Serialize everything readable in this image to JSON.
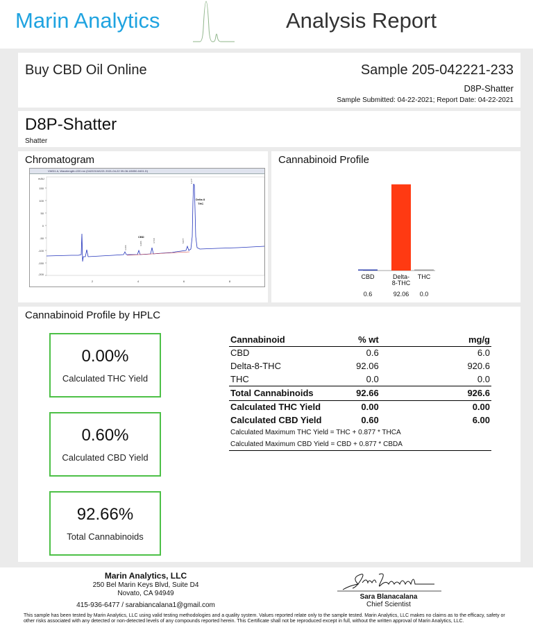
{
  "header": {
    "brand": "Marin Analytics",
    "title": "Analysis Report",
    "accent": "#1fa3e0"
  },
  "client": {
    "name": "Buy CBD Oil Online",
    "sample_id": "Sample 205-042221-233",
    "sample_name": "D8P-Shatter",
    "dates": "Sample Submitted: 04-22-2021;  Report Date: 04-22-2021"
  },
  "sample": {
    "title": "D8P-Shatter",
    "type": "Shatter"
  },
  "chromatogram": {
    "title": "Chromatogram",
    "caption": "VWD1 A, Wavelength=220 nm (04222104\\221 2021-04-22 09-08-18\\050-0401.D)",
    "y_unit": "mAU",
    "y_ticks": [
      "150",
      "100",
      "50",
      "0",
      "-50",
      "-100",
      "-150",
      "-200"
    ],
    "x_ticks": [
      "2",
      "4",
      "6",
      "8"
    ],
    "peak_labels": [
      "CBD",
      "Delta 8",
      "THC"
    ],
    "retention_times": [
      "3.366",
      "4.206",
      "4.718",
      "5.877",
      "6.177"
    ]
  },
  "chart_data": {
    "type": "bar",
    "title": "Cannabinoid Profile",
    "categories": [
      "CBD",
      "Delta-8-THC",
      "THC"
    ],
    "category_labels": [
      [
        "CBD"
      ],
      [
        "Delta-",
        "8-THC"
      ],
      [
        "THC"
      ]
    ],
    "values": [
      0.6,
      92.06,
      0.0
    ],
    "value_labels": [
      "0.6",
      "92.06",
      "0.0"
    ],
    "colors": [
      "#2c3fae",
      "#ff3a12",
      "#999999"
    ],
    "ylim": [
      0,
      100
    ],
    "xlabel": "",
    "ylabel": ""
  },
  "hplc": {
    "title": "Cannabinoid Profile by HPLC",
    "cards": [
      {
        "value": "0.00%",
        "label": "Calculated THC Yield"
      },
      {
        "value": "0.60%",
        "label": "Calculated CBD Yield"
      },
      {
        "value": "92.66%",
        "label": "Total Cannabinoids"
      }
    ],
    "table": {
      "headers": [
        "Cannabinoid",
        "% wt",
        "mg/g"
      ],
      "rows": [
        [
          "CBD",
          "0.6",
          "6.0"
        ],
        [
          "Delta-8-THC",
          "92.06",
          "920.6"
        ],
        [
          "THC",
          "0.0",
          "0.0"
        ]
      ],
      "total": [
        "Total Cannabinoids",
        "92.66",
        "926.6"
      ],
      "thc_yield": [
        "Calculated THC Yield",
        "0.00",
        "0.00"
      ],
      "cbd_yield": [
        "Calculated CBD Yield",
        "0.60",
        "6.00"
      ],
      "note_thc": "Calculated Maximum THC Yield = THC + 0.877 * THCA",
      "note_cbd": "Calculated Maximum CBD Yield = CBD + 0.877 * CBDA"
    }
  },
  "footer": {
    "lab": "Marin Analytics, LLC",
    "address1": "250 Bel Marin Keys Blvd, Suite D4",
    "address2": "Novato, CA 94949",
    "contact": "415-936-6477 / sarabiancalana1@gmail.com",
    "signer": "Sara Blanacalana",
    "signer_title": "Chief Scientist",
    "disclaimer": "This sample has been tested by Marin Analytics, LLC using valid testing methodologies and a quality system.  Values reported relate only to the sample tested.  Marin Analytics, LLC makes no claims as to the efficacy, safety or other risks associated with any detected or non-detected levels of any compounds reported herein.  This Certificate shall not be reproduced except in full, without the written approval of Marin Analytics, LLC."
  }
}
